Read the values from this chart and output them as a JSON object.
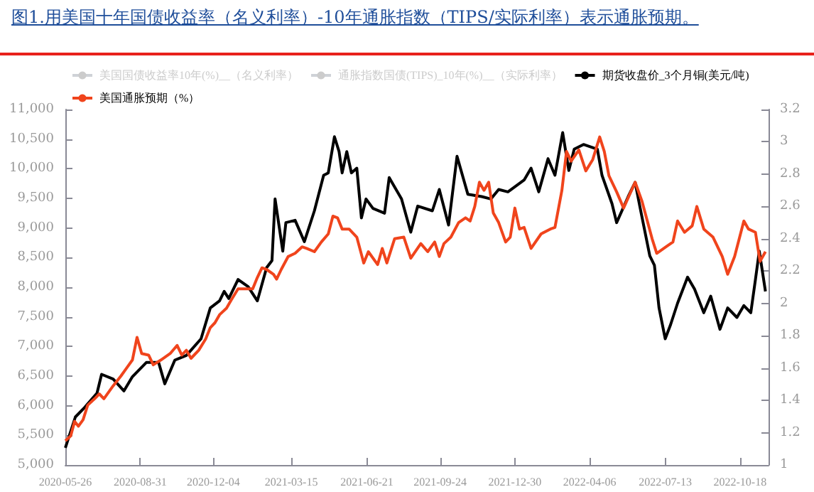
{
  "chart_data": {
    "type": "line",
    "title": "图1.用美国十年国债收益率（名义利率）-10年通胀指数（TIPS/实际利率）表示通胀预期。",
    "xlim": [
      "2020-05-26",
      "2022-11-24"
    ],
    "xticks": [
      "2020-05-26",
      "2020-08-31",
      "2020-12-04",
      "2021-03-15",
      "2021-06-21",
      "2021-09-24",
      "2021-12-30",
      "2022-04-06",
      "2022-07-13",
      "2022-10-18"
    ],
    "ylim": [
      5000,
      11000
    ],
    "yticks": [
      {
        "value": 5000,
        "label": "5,000"
      },
      {
        "value": 5500,
        "label": "5,500"
      },
      {
        "value": 6000,
        "label": "6,000"
      },
      {
        "value": 6500,
        "label": "6,500"
      },
      {
        "value": 7000,
        "label": "7,000"
      },
      {
        "value": 7500,
        "label": "7,500"
      },
      {
        "value": 8000,
        "label": "8,000"
      },
      {
        "value": 8500,
        "label": "8,500"
      },
      {
        "value": 9000,
        "label": "9,000"
      },
      {
        "value": 9500,
        "label": "9,500"
      },
      {
        "value": 10000,
        "label": "10,000"
      },
      {
        "value": 10500,
        "label": "10,500"
      },
      {
        "value": 11000,
        "label": "11,000"
      }
    ],
    "y2lim": [
      1,
      3.2
    ],
    "y2ticks": [
      1,
      1.2,
      1.4,
      1.6,
      1.8,
      2,
      2.2,
      2.4,
      2.6,
      2.8,
      3,
      3.2
    ],
    "legend": "top",
    "grid": false,
    "line_style": "solid",
    "marker": "none",
    "series": [
      {
        "name": "美国国债收益率10年(%)__（名义利率）"
      },
      {
        "name": "通胀指数国债(TIPS)_10年(%)__（实际利率）"
      },
      {
        "name": "期货收盘价_3个月铜(美元/吨)",
        "color": "#000000",
        "x": [
          "2020-05-26",
          "2020-06-08",
          "2020-06-20",
          "2020-07-06",
          "2020-07-12",
          "2020-07-27",
          "2020-08-10",
          "2020-08-21",
          "2020-09-08",
          "2020-09-24",
          "2020-10-02",
          "2020-10-15",
          "2020-10-30",
          "2020-11-18",
          "2020-11-30",
          "2020-12-12",
          "2020-12-18",
          "2020-12-24",
          "2021-01-05",
          "2021-01-18",
          "2021-01-30",
          "2021-02-11",
          "2021-02-18",
          "2021-02-22",
          "2021-03-04",
          "2021-03-08",
          "2021-03-20",
          "2021-04-01",
          "2021-04-14",
          "2021-04-26",
          "2021-05-02",
          "2021-05-10",
          "2021-05-16",
          "2021-05-20",
          "2021-05-26",
          "2021-06-01",
          "2021-06-08",
          "2021-06-14",
          "2021-06-20",
          "2021-06-29",
          "2021-07-14",
          "2021-07-20",
          "2021-08-05",
          "2021-08-17",
          "2021-08-26",
          "2021-09-14",
          "2021-09-23",
          "2021-10-05",
          "2021-10-16",
          "2021-10-30",
          "2021-11-17",
          "2021-11-29",
          "2021-12-09",
          "2021-12-21",
          "2022-01-11",
          "2022-01-20",
          "2022-01-30",
          "2022-02-11",
          "2022-02-20",
          "2022-03-02",
          "2022-03-10",
          "2022-03-17",
          "2022-03-29",
          "2022-04-16",
          "2022-04-22",
          "2022-05-05",
          "2022-05-11",
          "2022-05-26",
          "2022-06-04",
          "2022-06-10",
          "2022-06-23",
          "2022-06-29",
          "2022-07-05",
          "2022-07-13",
          "2022-07-20",
          "2022-07-29",
          "2022-08-11",
          "2022-08-20",
          "2022-09-01",
          "2022-09-10",
          "2022-09-22",
          "2022-10-02",
          "2022-10-14",
          "2022-10-23",
          "2022-11-01",
          "2022-11-07",
          "2022-11-12",
          "2022-11-20"
        ],
        "values": [
          5290,
          5810,
          5970,
          6210,
          6530,
          6450,
          6250,
          6490,
          6730,
          6730,
          6370,
          6770,
          6850,
          7130,
          7650,
          7770,
          7930,
          7810,
          8130,
          8010,
          7770,
          8330,
          8450,
          9490,
          8610,
          9090,
          9130,
          8770,
          9290,
          9890,
          9930,
          10540,
          10290,
          9930,
          10290,
          9930,
          10010,
          9170,
          9490,
          9330,
          9250,
          9850,
          9490,
          8930,
          9370,
          9290,
          9650,
          9050,
          10210,
          9570,
          9530,
          9490,
          9650,
          9610,
          9810,
          10010,
          9610,
          10170,
          9890,
          10610,
          9970,
          10330,
          10410,
          10330,
          9890,
          9410,
          9090,
          9530,
          9770,
          9370,
          8530,
          8370,
          7650,
          7130,
          7370,
          7730,
          8170,
          7970,
          7570,
          7850,
          7290,
          7650,
          7490,
          7690,
          7570,
          8130,
          8610,
          7930
        ]
      },
      {
        "name": "美国通胀预期（%）",
        "color": "#f0441c",
        "axis": "y2",
        "x": [
          "2020-05-26",
          "2020-06-02",
          "2020-06-07",
          "2020-06-12",
          "2020-06-18",
          "2020-06-24",
          "2020-07-03",
          "2020-07-09",
          "2020-07-15",
          "2020-07-27",
          "2020-08-06",
          "2020-08-12",
          "2020-08-21",
          "2020-08-27",
          "2020-09-02",
          "2020-09-11",
          "2020-09-17",
          "2020-09-27",
          "2020-10-09",
          "2020-10-18",
          "2020-10-24",
          "2020-10-30",
          "2020-11-05",
          "2020-11-15",
          "2020-11-24",
          "2020-11-30",
          "2020-12-06",
          "2020-12-12",
          "2020-12-21",
          "2020-12-27",
          "2021-01-05",
          "2021-01-15",
          "2021-01-24",
          "2021-01-30",
          "2021-02-05",
          "2021-02-11",
          "2021-02-20",
          "2021-02-24",
          "2021-03-02",
          "2021-03-11",
          "2021-03-20",
          "2021-03-29",
          "2021-04-04",
          "2021-04-14",
          "2021-04-23",
          "2021-05-02",
          "2021-05-08",
          "2021-05-14",
          "2021-05-20",
          "2021-05-29",
          "2021-06-08",
          "2021-06-17",
          "2021-06-23",
          "2021-07-05",
          "2021-07-11",
          "2021-07-17",
          "2021-07-27",
          "2021-08-08",
          "2021-08-17",
          "2021-08-30",
          "2021-09-08",
          "2021-09-17",
          "2021-09-23",
          "2021-09-29",
          "2021-10-08",
          "2021-10-18",
          "2021-10-27",
          "2021-11-02",
          "2021-11-08",
          "2021-11-14",
          "2021-11-20",
          "2021-11-26",
          "2021-12-02",
          "2021-12-09",
          "2021-12-18",
          "2021-12-24",
          "2021-12-30",
          "2022-01-05",
          "2022-01-11",
          "2022-01-20",
          "2022-02-02",
          "2022-02-14",
          "2022-02-20",
          "2022-03-01",
          "2022-03-07",
          "2022-03-13",
          "2022-03-23",
          "2022-04-01",
          "2022-04-10",
          "2022-04-19",
          "2022-04-25",
          "2022-05-01",
          "2022-05-11",
          "2022-05-20",
          "2022-06-04",
          "2022-06-13",
          "2022-06-26",
          "2022-07-02",
          "2022-07-14",
          "2022-07-23",
          "2022-07-29",
          "2022-08-07",
          "2022-08-17",
          "2022-08-23",
          "2022-09-01",
          "2022-09-13",
          "2022-09-25",
          "2022-10-02",
          "2022-10-11",
          "2022-10-23",
          "2022-10-29",
          "2022-11-07",
          "2022-11-13",
          "2022-11-20"
        ],
        "values": [
          1.15,
          1.18,
          1.27,
          1.24,
          1.28,
          1.37,
          1.41,
          1.44,
          1.41,
          1.49,
          1.55,
          1.59,
          1.65,
          1.79,
          1.69,
          1.68,
          1.62,
          1.65,
          1.69,
          1.74,
          1.68,
          1.71,
          1.66,
          1.71,
          1.78,
          1.85,
          1.88,
          1.93,
          1.97,
          2.02,
          2.09,
          2.09,
          2.09,
          2.16,
          2.22,
          2.21,
          2.18,
          2.15,
          2.21,
          2.29,
          2.31,
          2.35,
          2.34,
          2.32,
          2.38,
          2.43,
          2.54,
          2.53,
          2.46,
          2.46,
          2.41,
          2.25,
          2.32,
          2.24,
          2.34,
          2.25,
          2.4,
          2.41,
          2.28,
          2.37,
          2.32,
          2.38,
          2.29,
          2.37,
          2.41,
          2.5,
          2.53,
          2.51,
          2.6,
          2.75,
          2.7,
          2.75,
          2.56,
          2.5,
          2.38,
          2.41,
          2.59,
          2.46,
          2.47,
          2.34,
          2.43,
          2.46,
          2.47,
          2.7,
          2.94,
          2.88,
          2.95,
          2.82,
          2.89,
          3.03,
          2.94,
          2.79,
          2.69,
          2.59,
          2.75,
          2.63,
          2.4,
          2.31,
          2.35,
          2.38,
          2.51,
          2.44,
          2.48,
          2.6,
          2.46,
          2.41,
          2.29,
          2.18,
          2.29,
          2.51,
          2.46,
          2.44,
          2.26,
          2.32
        ]
      }
    ]
  }
}
